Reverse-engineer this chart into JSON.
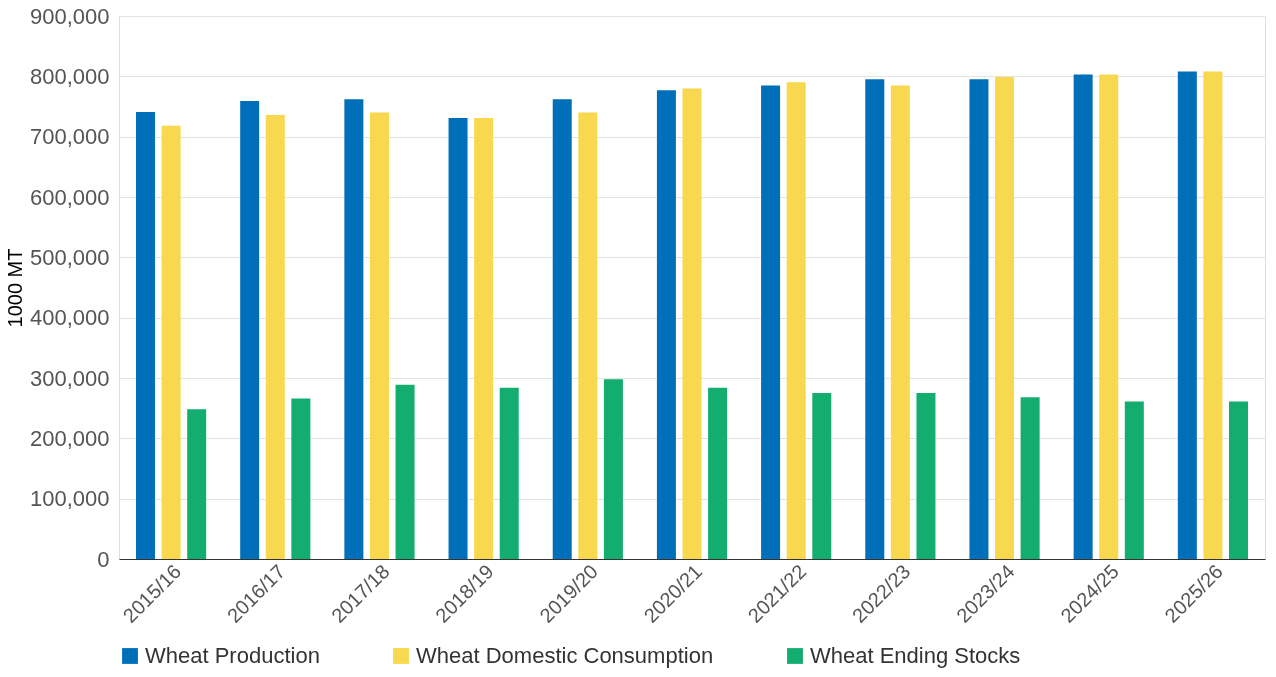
{
  "chart_data": {
    "type": "bar",
    "ylabel": "1000 MT",
    "categories": [
      "2015/16",
      "2016/17",
      "2017/18",
      "2018/19",
      "2019/20",
      "2020/21",
      "2021/22",
      "2022/23",
      "2023/24",
      "2024/25",
      "2025/26"
    ],
    "series": [
      {
        "name": "Wheat Production",
        "color": "#006fb9",
        "values": [
          741000,
          759000,
          762000,
          731000,
          762000,
          777000,
          785000,
          795000,
          795000,
          803000,
          808000
        ]
      },
      {
        "name": "Wheat Domestic Consumption",
        "color": "#f8d84e",
        "values": [
          718000,
          736000,
          740000,
          731000,
          740000,
          780000,
          790000,
          785000,
          799000,
          803000,
          808000
        ]
      },
      {
        "name": "Wheat Ending Stocks",
        "color": "#12ad6f",
        "values": [
          248000,
          266000,
          289000,
          284000,
          298000,
          284000,
          275000,
          275000,
          268000,
          261000,
          261000
        ]
      }
    ],
    "ylim": [
      0,
      900000
    ],
    "yticks": [
      0,
      {
        "value": 100000,
        "label": "100,000"
      },
      {
        "value": 200000,
        "label": "200,000"
      },
      {
        "value": 300000,
        "label": "300,000"
      },
      {
        "value": 400000,
        "label": "400,000"
      },
      {
        "value": 500000,
        "label": "500,000"
      },
      {
        "value": 600000,
        "label": "600,000"
      },
      {
        "value": 700000,
        "label": "700,000"
      },
      {
        "value": 800000,
        "label": "800,000"
      },
      {
        "value": 900000,
        "label": "900,000"
      }
    ],
    "grid": "y",
    "legend": "bottom"
  }
}
